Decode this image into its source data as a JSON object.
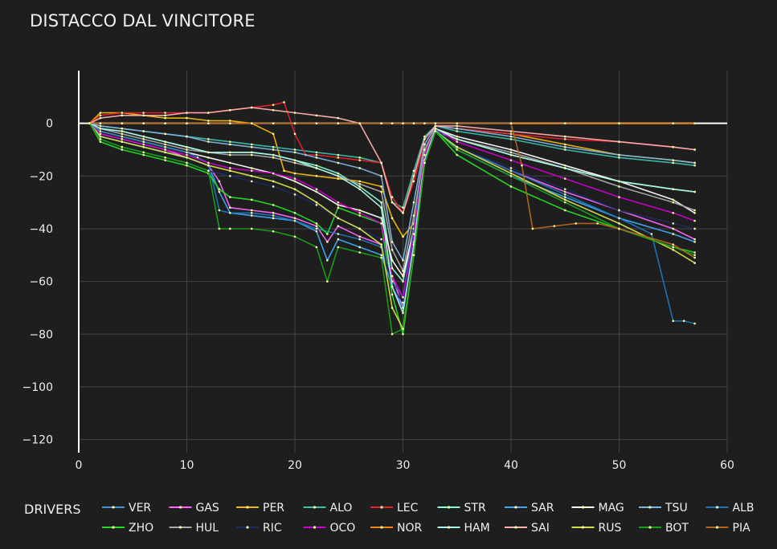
{
  "chart_data": {
    "type": "line",
    "title": "DISTACCO DAL VINCITORE",
    "xlabel": "",
    "ylabel": "",
    "xlim": [
      0,
      60
    ],
    "ylim": [
      -125,
      20
    ],
    "xticks": [
      0,
      10,
      20,
      30,
      40,
      50,
      60
    ],
    "yticks": [
      0,
      -20,
      -40,
      -60,
      -80,
      -100,
      -120
    ],
    "grid": true,
    "legend": {
      "title": "DRIVERS",
      "placement": "bottom"
    },
    "series": [
      {
        "name": "VER",
        "color": "#4a90d9",
        "x": [
          1,
          2,
          4,
          6,
          8,
          10,
          12,
          14,
          16,
          18,
          20,
          22,
          24,
          26,
          28,
          29,
          30,
          31,
          32,
          33,
          35,
          40,
          45,
          50,
          55,
          57
        ],
        "y": [
          0,
          0,
          0,
          0,
          0,
          0,
          0,
          0,
          0,
          0,
          0,
          0,
          0,
          0,
          0,
          0,
          0,
          0,
          0,
          0,
          0,
          0,
          0,
          0,
          0,
          0
        ]
      },
      {
        "name": "GAS",
        "color": "#ff66ff",
        "x": [
          1,
          2,
          4,
          6,
          8,
          10,
          12,
          13,
          14,
          16,
          18,
          20,
          22,
          23,
          24,
          26,
          28,
          29,
          30,
          31,
          32,
          33,
          35,
          40,
          45,
          50,
          55,
          57
        ],
        "y": [
          0,
          -4,
          -6,
          -8,
          -10,
          -13,
          -16,
          -22,
          -32,
          -33,
          -34,
          -36,
          -39,
          -45,
          -39,
          -43,
          -46,
          -58,
          -70,
          -40,
          -10,
          -2,
          -9,
          -18,
          -26,
          -33,
          -40,
          -44
        ]
      },
      {
        "name": "PER",
        "color": "#f5b800",
        "x": [
          1,
          2,
          4,
          6,
          8,
          10,
          12,
          14,
          16,
          18,
          19,
          20,
          22,
          24,
          26,
          28,
          29,
          30,
          31,
          32,
          33,
          35,
          40,
          45,
          50,
          55,
          57
        ],
        "y": [
          0,
          4,
          4,
          3,
          2,
          2,
          1,
          1,
          0,
          -4,
          -18,
          -19,
          -20,
          -21,
          -22,
          -24,
          -36,
          -43,
          -38,
          -12,
          -1,
          -2,
          -4,
          -8,
          -12,
          -14,
          -15
        ]
      },
      {
        "name": "ALO",
        "color": "#39c0a8",
        "x": [
          1,
          2,
          4,
          6,
          8,
          10,
          12,
          14,
          16,
          18,
          20,
          22,
          24,
          26,
          28,
          29,
          30,
          31,
          32,
          33,
          35,
          40,
          45,
          50,
          55,
          57
        ],
        "y": [
          0,
          -1,
          -2,
          -3,
          -4,
          -5,
          -6,
          -7,
          -8,
          -9,
          -10,
          -11,
          -12,
          -13,
          -15,
          -30,
          -32,
          -18,
          -5,
          -1,
          -3,
          -6,
          -10,
          -13,
          -15,
          -16
        ]
      },
      {
        "name": "LEC",
        "color": "#e8202a",
        "x": [
          1,
          2,
          4,
          6,
          8,
          10,
          12,
          14,
          16,
          18,
          19,
          20,
          21,
          22,
          24,
          26,
          28,
          29,
          30,
          31,
          32,
          33,
          35,
          40,
          45,
          50,
          55,
          57
        ],
        "y": [
          0,
          3,
          4,
          4,
          4,
          4,
          4,
          5,
          6,
          7,
          8,
          -4,
          -12,
          -12,
          -13,
          -14,
          -15,
          -28,
          -34,
          -22,
          -8,
          -1,
          -2,
          -4,
          -6,
          -7,
          -9,
          -10
        ]
      },
      {
        "name": "STR",
        "color": "#7fffd4",
        "x": [
          1,
          2,
          4,
          6,
          8,
          10,
          12,
          14,
          16,
          18,
          20,
          22,
          24,
          26,
          28,
          29,
          30,
          31,
          32,
          33,
          35,
          40,
          45,
          50,
          55,
          57
        ],
        "y": [
          0,
          -2,
          -3,
          -5,
          -7,
          -9,
          -11,
          -11,
          -11,
          -12,
          -14,
          -16,
          -19,
          -24,
          -30,
          -55,
          -60,
          -40,
          -15,
          -3,
          -6,
          -12,
          -17,
          -22,
          -25,
          -26
        ]
      },
      {
        "name": "SAR",
        "color": "#3fa9f5",
        "x": [
          1,
          2,
          4,
          6,
          8,
          10,
          12,
          13,
          14,
          16,
          18,
          20,
          22,
          23,
          24,
          26,
          28,
          29,
          30,
          31,
          32,
          33,
          35,
          40,
          45,
          50,
          55,
          57
        ],
        "y": [
          0,
          -5,
          -7,
          -9,
          -11,
          -13,
          -16,
          -26,
          -34,
          -35,
          -36,
          -37,
          -41,
          -52,
          -44,
          -47,
          -50,
          -62,
          -70,
          -42,
          -12,
          -2,
          -10,
          -20,
          -28,
          -36,
          -42,
          -45
        ]
      },
      {
        "name": "MAG",
        "color": "#ffffff",
        "x": [
          1,
          2,
          4,
          6,
          8,
          10,
          12,
          14,
          16,
          18,
          20,
          22,
          24,
          26,
          28,
          29,
          30,
          31,
          32,
          33,
          35,
          40,
          45,
          50,
          55,
          57
        ],
        "y": [
          0,
          -3,
          -5,
          -7,
          -9,
          -11,
          -13,
          -15,
          -17,
          -19,
          -22,
          -26,
          -31,
          -33,
          -36,
          -52,
          -58,
          -40,
          -14,
          -2,
          -5,
          -10,
          -16,
          -22,
          -29,
          -34
        ]
      },
      {
        "name": "TSU",
        "color": "#7fb3e0",
        "x": [
          1,
          2,
          4,
          6,
          8,
          10,
          12,
          14,
          16,
          18,
          20,
          22,
          24,
          26,
          28,
          29,
          30,
          31,
          32,
          33,
          35,
          40,
          45,
          50,
          55,
          57
        ],
        "y": [
          0,
          -1,
          -2,
          -3,
          -4,
          -5,
          -7,
          -8,
          -9,
          -10,
          -11,
          -13,
          -15,
          -17,
          -20,
          -45,
          -52,
          -30,
          -8,
          -1,
          -2,
          -5,
          -9,
          -12,
          -14,
          -15
        ]
      },
      {
        "name": "ALB",
        "color": "#1a78b8",
        "x": [
          1,
          2,
          4,
          6,
          8,
          10,
          11,
          12,
          13,
          14,
          16,
          18,
          20,
          22,
          24,
          26,
          28,
          29,
          30,
          31,
          32,
          33,
          35,
          40,
          45,
          50,
          53,
          55,
          56,
          57
        ],
        "y": [
          0,
          -3,
          -5,
          -7,
          -9,
          -11,
          -13,
          -15,
          -33,
          -34,
          -34,
          -35,
          -37,
          -40,
          -42,
          -44,
          -47,
          -60,
          -66,
          -40,
          -10,
          -2,
          -9,
          -18,
          -27,
          -36,
          -42,
          -75,
          -75,
          -76
        ]
      },
      {
        "name": "ZHO",
        "color": "#22dd22",
        "x": [
          1,
          2,
          4,
          6,
          8,
          10,
          12,
          13,
          14,
          16,
          18,
          20,
          22,
          23,
          24,
          26,
          28,
          29,
          30,
          31,
          32,
          33,
          35,
          40,
          45,
          50,
          55,
          57
        ],
        "y": [
          0,
          -7,
          -10,
          -12,
          -14,
          -16,
          -19,
          -25,
          -28,
          -29,
          -31,
          -34,
          -38,
          -42,
          -32,
          -35,
          -38,
          -65,
          -80,
          -50,
          -15,
          -3,
          -12,
          -24,
          -33,
          -40,
          -47,
          -49
        ]
      },
      {
        "name": "HUL",
        "color": "#aaaaaa",
        "x": [
          1,
          2,
          4,
          6,
          8,
          10,
          12,
          14,
          16,
          18,
          20,
          22,
          24,
          26,
          28,
          29,
          30,
          31,
          32,
          33,
          35,
          40,
          45,
          50,
          55,
          57
        ],
        "y": [
          0,
          -2,
          -4,
          -6,
          -8,
          -10,
          -11,
          -12,
          -12,
          -13,
          -15,
          -17,
          -20,
          -23,
          -26,
          -48,
          -56,
          -35,
          -10,
          -2,
          -6,
          -11,
          -17,
          -24,
          -30,
          -33
        ]
      },
      {
        "name": "RIC",
        "color": "#1c2a60",
        "x": [
          1,
          2,
          4,
          6,
          8,
          10,
          12,
          14,
          16,
          18,
          20,
          22,
          24,
          26,
          28,
          29,
          30,
          31,
          32,
          33,
          35,
          40,
          45,
          50,
          55,
          57
        ],
        "y": [
          0,
          -6,
          -9,
          -11,
          -13,
          -15,
          -18,
          -20,
          -22,
          -24,
          -27,
          -31,
          -36,
          -40,
          -44,
          -62,
          -68,
          -45,
          -14,
          -2,
          -9,
          -17,
          -25,
          -33,
          -38,
          -40
        ]
      },
      {
        "name": "OCO",
        "color": "#cc00cc",
        "x": [
          1,
          2,
          4,
          6,
          8,
          10,
          12,
          14,
          16,
          18,
          20,
          22,
          24,
          26,
          28,
          29,
          30,
          31,
          32,
          33,
          35,
          40,
          45,
          50,
          55,
          57
        ],
        "y": [
          0,
          -4,
          -6,
          -8,
          -10,
          -12,
          -15,
          -17,
          -18,
          -19,
          -21,
          -25,
          -30,
          -34,
          -38,
          -58,
          -66,
          -42,
          -12,
          -2,
          -7,
          -14,
          -21,
          -28,
          -34,
          -37
        ]
      },
      {
        "name": "NOR",
        "color": "#ff8000",
        "x": [
          1,
          2,
          4,
          6,
          8,
          10,
          12,
          14,
          16,
          18,
          20,
          22,
          24,
          26,
          28,
          30,
          33,
          35,
          40,
          45,
          50,
          55,
          57
        ],
        "y": [
          0,
          0,
          0,
          0,
          0,
          0,
          0,
          0,
          0,
          0,
          0,
          0,
          0,
          0,
          0,
          0,
          0,
          0,
          0,
          0,
          0,
          0,
          0
        ]
      },
      {
        "name": "HAM",
        "color": "#aef5e8",
        "x": [
          1,
          2,
          4,
          6,
          8,
          10,
          12,
          14,
          16,
          18,
          20,
          22,
          24,
          26,
          28,
          29,
          30,
          31,
          32,
          33,
          35,
          40,
          45,
          50,
          55,
          57
        ],
        "y": [
          0,
          -2,
          -3,
          -5,
          -7,
          -9,
          -11,
          -11,
          -11,
          -12,
          -14,
          -17,
          -20,
          -25,
          -32,
          -62,
          -72,
          -46,
          -14,
          -2,
          -6,
          -12,
          -17,
          -22,
          -25,
          -26
        ]
      },
      {
        "name": "SAI",
        "color": "#ffb0b0",
        "x": [
          1,
          2,
          4,
          6,
          8,
          10,
          12,
          14,
          16,
          18,
          20,
          22,
          24,
          26,
          28,
          29,
          30,
          31,
          32,
          33,
          35,
          40,
          45,
          50,
          55,
          57
        ],
        "y": [
          0,
          2,
          3,
          3,
          3,
          4,
          4,
          5,
          6,
          5,
          4,
          3,
          2,
          0,
          -15,
          -30,
          -34,
          -20,
          -6,
          -1,
          -1,
          -3,
          -5,
          -7,
          -9,
          -10
        ]
      },
      {
        "name": "RUS",
        "color": "#d4e04a",
        "x": [
          1,
          2,
          4,
          6,
          8,
          10,
          12,
          14,
          16,
          18,
          20,
          22,
          24,
          26,
          28,
          29,
          30,
          31,
          32,
          33,
          35,
          40,
          45,
          50,
          55,
          57
        ],
        "y": [
          0,
          -5,
          -7,
          -9,
          -11,
          -13,
          -16,
          -18,
          -20,
          -22,
          -25,
          -30,
          -36,
          -40,
          -46,
          -70,
          -78,
          -50,
          -15,
          -3,
          -9,
          -19,
          -29,
          -38,
          -48,
          -53
        ]
      },
      {
        "name": "BOT",
        "color": "#18a018",
        "x": [
          1,
          2,
          4,
          6,
          8,
          10,
          12,
          13,
          14,
          16,
          18,
          20,
          22,
          23,
          24,
          26,
          28,
          29,
          30,
          31,
          32,
          33,
          35,
          40,
          45,
          50,
          55,
          57
        ],
        "y": [
          0,
          -6,
          -9,
          -11,
          -13,
          -15,
          -18,
          -40,
          -40,
          -40,
          -41,
          -43,
          -47,
          -60,
          -47,
          -49,
          -51,
          -80,
          -78,
          -50,
          -15,
          -3,
          -10,
          -20,
          -30,
          -40,
          -47,
          -50
        ]
      },
      {
        "name": "PIA",
        "color": "#b5651d",
        "x": [
          1,
          2,
          4,
          6,
          8,
          10,
          12,
          14,
          16,
          18,
          20,
          22,
          24,
          26,
          28,
          29,
          30,
          31,
          32,
          33,
          35,
          40,
          41,
          42,
          44,
          46,
          48,
          50,
          55,
          57
        ],
        "y": [
          0,
          0,
          0,
          0,
          0,
          0,
          0,
          0,
          0,
          0,
          0,
          0,
          0,
          0,
          0,
          0,
          0,
          0,
          0,
          0,
          0,
          0,
          -16,
          -40,
          -39,
          -38,
          -38,
          -40,
          -46,
          -51
        ]
      }
    ]
  }
}
